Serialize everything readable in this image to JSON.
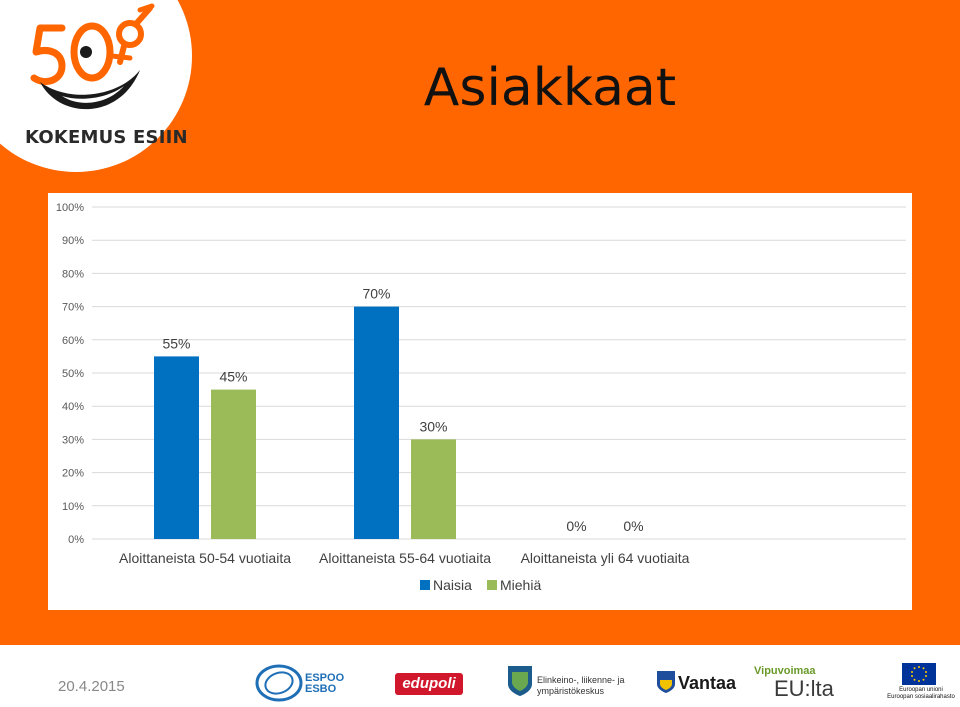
{
  "header": {
    "title": "Asiakkaat",
    "logo_text": "KOKEMUS ESIIN",
    "logo_icon": "50-plus-smile-logo"
  },
  "colors": {
    "background_orange": "#ff6600",
    "naisia": "#0070c0",
    "miehia": "#9bbb59"
  },
  "chart_data": {
    "type": "bar",
    "categories": [
      "Aloittaneista 50-54 vuotiaita",
      "Aloittaneista 55-64 vuotiaita",
      "Aloittaneista yli 64 vuotiaita"
    ],
    "series": [
      {
        "name": "Naisia",
        "values": [
          55,
          70,
          0
        ],
        "labels": [
          "55%",
          "70%",
          "0%"
        ]
      },
      {
        "name": "Miehiä",
        "values": [
          45,
          30,
          0
        ],
        "labels": [
          "45%",
          "30%",
          "0%"
        ]
      }
    ],
    "yticks": [
      "0%",
      "10%",
      "20%",
      "30%",
      "40%",
      "50%",
      "60%",
      "70%",
      "80%",
      "90%",
      "100%"
    ],
    "ylim": [
      0,
      100
    ],
    "grid": true,
    "legend": "bottom"
  },
  "footer": {
    "date": "20.4.2015",
    "logos": {
      "espoo_line1": "ESPOO",
      "espoo_line2": "ESBO",
      "edupoli": "edupoli",
      "ely_line1": "Elinkeino-, liikenne- ja",
      "ely_line2": "ympäristökeskus",
      "vantaa": "Vantaa",
      "vipu_line1": "Vipuvoimaa",
      "vipu_line2": "EU:lta",
      "eu_line1": "Euroopan unioni",
      "eu_line2": "Euroopan sosiaalirahasto"
    }
  }
}
